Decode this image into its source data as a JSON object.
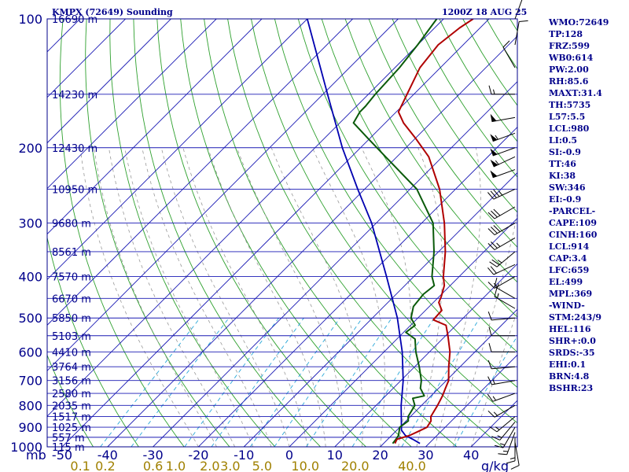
{
  "header": {
    "station": "KMPX (72649) Sounding",
    "time": "1200Z 18 AUG 25"
  },
  "colors": {
    "frame": "#00008b",
    "isobar": "#1a1ab4",
    "isotherm": "#1a1ab4",
    "dry_adiabat": "#2ea02e",
    "moist_adiabat": "#999999",
    "mixing_ratio": "#2aa8d8",
    "temperature": "#b00000",
    "dewpoint": "#0a5a0a",
    "parcel": "#0000b0",
    "wind": "#000000",
    "mr_label": "#a08000"
  },
  "stats": [
    "WMO:72649",
    "TP:128",
    "FRZ:599",
    "WB0:614",
    "PW:2.00",
    "RH:85.6",
    "MAXT:31.4",
    "TH:5735",
    "L57:5.5",
    "LCL:980",
    "LI:0.5",
    "SI:-0.9",
    "TT:46",
    "KI:38",
    "SW:346",
    "EI:-0.9",
    "-PARCEL-",
    "CAPE:109",
    "CINH:160",
    "LCL:914",
    "CAP:3.4",
    "LFC:659",
    "EL:499",
    "MPL:369",
    "-WIND-",
    "STM:243/9",
    "HEL:116",
    "SHR+:0.0",
    "SRDS:-35",
    "EHI:0.1",
    "BRN:4.8",
    "BSHR:23"
  ],
  "chart_data": {
    "type": "skew-t",
    "yscale": "log",
    "pressure_range_hpa": [
      1000,
      100
    ],
    "pressure_labels": [
      {
        "p": 100,
        "label": "100"
      },
      {
        "p": 200,
        "label": "200"
      },
      {
        "p": 300,
        "label": "300"
      },
      {
        "p": 400,
        "label": "400"
      },
      {
        "p": 500,
        "label": "500"
      },
      {
        "p": 600,
        "label": "600"
      },
      {
        "p": 700,
        "label": "700"
      },
      {
        "p": 800,
        "label": "800"
      },
      {
        "p": 900,
        "label": "900"
      },
      {
        "p": 1000,
        "label": "1000"
      }
    ],
    "y_axis_unit": "mb",
    "height_labels": [
      {
        "p": 100,
        "label": "16690 m"
      },
      {
        "p": 150,
        "label": "14230 m"
      },
      {
        "p": 200,
        "label": "12430 m"
      },
      {
        "p": 250,
        "label": "10950 m"
      },
      {
        "p": 300,
        "label": "9680 m"
      },
      {
        "p": 350,
        "label": "8561 m"
      },
      {
        "p": 400,
        "label": "7570 m"
      },
      {
        "p": 450,
        "label": "6670 m"
      },
      {
        "p": 500,
        "label": "5850 m"
      },
      {
        "p": 550,
        "label": "5103 m"
      },
      {
        "p": 600,
        "label": "4410 m"
      },
      {
        "p": 650,
        "label": "3764 m"
      },
      {
        "p": 700,
        "label": "3156 m"
      },
      {
        "p": 750,
        "label": "2580 m"
      },
      {
        "p": 800,
        "label": "2035 m"
      },
      {
        "p": 850,
        "label": "1517 m"
      },
      {
        "p": 900,
        "label": "1025 m"
      },
      {
        "p": 950,
        "label": "557 m"
      },
      {
        "p": 1000,
        "label": "115 m"
      }
    ],
    "temperature_ticks_c": [
      -50,
      -40,
      -30,
      -20,
      -10,
      0,
      10,
      20,
      30,
      40
    ],
    "mixing_ratio_labels": [
      {
        "label": "0.1",
        "t": -46
      },
      {
        "label": "0.2",
        "t": -40.5
      },
      {
        "label": "0.6",
        "t": -30
      },
      {
        "label": "1.0",
        "t": -25
      },
      {
        "label": "2.0",
        "t": -17.5
      },
      {
        "label": "3.0",
        "t": -13
      },
      {
        "label": "5.0",
        "t": -6
      },
      {
        "label": "10.0",
        "t": 3.5
      },
      {
        "label": "20.0",
        "t": 14.5
      },
      {
        "label": "40.0",
        "t": 27
      }
    ],
    "mixing_ratio_unit": "g/kg",
    "temperature_profile": [
      [
        982,
        22.5
      ],
      [
        960,
        22
      ],
      [
        940,
        24
      ],
      [
        920,
        25
      ],
      [
        900,
        26
      ],
      [
        870,
        25.5
      ],
      [
        850,
        24.5
      ],
      [
        800,
        23.5
      ],
      [
        760,
        22.5
      ],
      [
        730,
        21.5
      ],
      [
        700,
        20.5
      ],
      [
        650,
        17.5
      ],
      [
        600,
        14.5
      ],
      [
        550,
        10.5
      ],
      [
        520,
        7.8
      ],
      [
        505,
        3.8
      ],
      [
        480,
        3.6
      ],
      [
        460,
        1.2
      ],
      [
        445,
        0.4
      ],
      [
        420,
        -1.3
      ],
      [
        400,
        -3.5
      ],
      [
        350,
        -8.5
      ],
      [
        300,
        -15
      ],
      [
        250,
        -23.5
      ],
      [
        210,
        -33
      ],
      [
        190,
        -40
      ],
      [
        175,
        -46
      ],
      [
        165,
        -49.5
      ],
      [
        150,
        -51.5
      ],
      [
        130,
        -54.5
      ],
      [
        115,
        -55.5
      ],
      [
        105,
        -54.5
      ],
      [
        100,
        -53.5
      ]
    ],
    "dewpoint_profile": [
      [
        982,
        22
      ],
      [
        960,
        21.8
      ],
      [
        940,
        21.5
      ],
      [
        900,
        20
      ],
      [
        870,
        20.5
      ],
      [
        850,
        19.5
      ],
      [
        800,
        18.5
      ],
      [
        770,
        16.5
      ],
      [
        760,
        18.5
      ],
      [
        730,
        16
      ],
      [
        700,
        14.5
      ],
      [
        650,
        11
      ],
      [
        600,
        7
      ],
      [
        560,
        4
      ],
      [
        540,
        0.5
      ],
      [
        520,
        1
      ],
      [
        500,
        -1.5
      ],
      [
        470,
        -3.5
      ],
      [
        440,
        -4
      ],
      [
        420,
        -3.5
      ],
      [
        400,
        -6
      ],
      [
        350,
        -11
      ],
      [
        300,
        -17.5
      ],
      [
        250,
        -28.5
      ],
      [
        210,
        -42.5
      ],
      [
        190,
        -50.5
      ],
      [
        175,
        -57
      ],
      [
        165,
        -58
      ],
      [
        160,
        -58
      ],
      [
        150,
        -58.5
      ],
      [
        130,
        -59
      ],
      [
        115,
        -60
      ],
      [
        100,
        -61.5
      ]
    ],
    "parcel_profile": [
      [
        982,
        28
      ],
      [
        960,
        25.5
      ],
      [
        940,
        23
      ],
      [
        914,
        21
      ],
      [
        850,
        18
      ],
      [
        800,
        15.5
      ],
      [
        700,
        10.5
      ],
      [
        600,
        4
      ],
      [
        500,
        -4.5
      ],
      [
        400,
        -16
      ],
      [
        300,
        -31
      ],
      [
        250,
        -41.5
      ],
      [
        200,
        -54
      ],
      [
        150,
        -69
      ],
      [
        100,
        -90
      ]
    ],
    "wind_barbs": [
      {
        "p": 975,
        "dir": 170,
        "kt": 10
      },
      {
        "p": 950,
        "dir": 180,
        "kt": 15
      },
      {
        "p": 925,
        "dir": 200,
        "kt": 15
      },
      {
        "p": 900,
        "dir": 210,
        "kt": 15
      },
      {
        "p": 875,
        "dir": 220,
        "kt": 15
      },
      {
        "p": 850,
        "dir": 230,
        "kt": 15
      },
      {
        "p": 800,
        "dir": 240,
        "kt": 15
      },
      {
        "p": 750,
        "dir": 250,
        "kt": 15
      },
      {
        "p": 700,
        "dir": 260,
        "kt": 15
      },
      {
        "p": 650,
        "dir": 265,
        "kt": 10
      },
      {
        "p": 600,
        "dir": 270,
        "kt": 10
      },
      {
        "p": 550,
        "dir": 270,
        "kt": 10
      },
      {
        "p": 500,
        "dir": 265,
        "kt": 10
      },
      {
        "p": 475,
        "dir": 300,
        "kt": 15
      },
      {
        "p": 450,
        "dir": 300,
        "kt": 15
      },
      {
        "p": 400,
        "dir": 240,
        "kt": 15
      },
      {
        "p": 375,
        "dir": 245,
        "kt": 20
      },
      {
        "p": 350,
        "dir": 230,
        "kt": 25
      },
      {
        "p": 325,
        "dir": 240,
        "kt": 25
      },
      {
        "p": 300,
        "dir": 240,
        "kt": 30
      },
      {
        "p": 275,
        "dir": 240,
        "kt": 30
      },
      {
        "p": 250,
        "dir": 245,
        "kt": 35
      },
      {
        "p": 225,
        "dir": 250,
        "kt": 50
      },
      {
        "p": 210,
        "dir": 245,
        "kt": 55
      },
      {
        "p": 200,
        "dir": 250,
        "kt": 50
      },
      {
        "p": 185,
        "dir": 250,
        "kt": 55
      },
      {
        "p": 170,
        "dir": 260,
        "kt": 50
      },
      {
        "p": 150,
        "dir": 270,
        "kt": 15
      },
      {
        "p": 130,
        "dir": 330,
        "kt": 10
      },
      {
        "p": 115,
        "dir": 10,
        "kt": 10
      },
      {
        "p": 100,
        "dir": 20,
        "kt": 10
      }
    ]
  }
}
